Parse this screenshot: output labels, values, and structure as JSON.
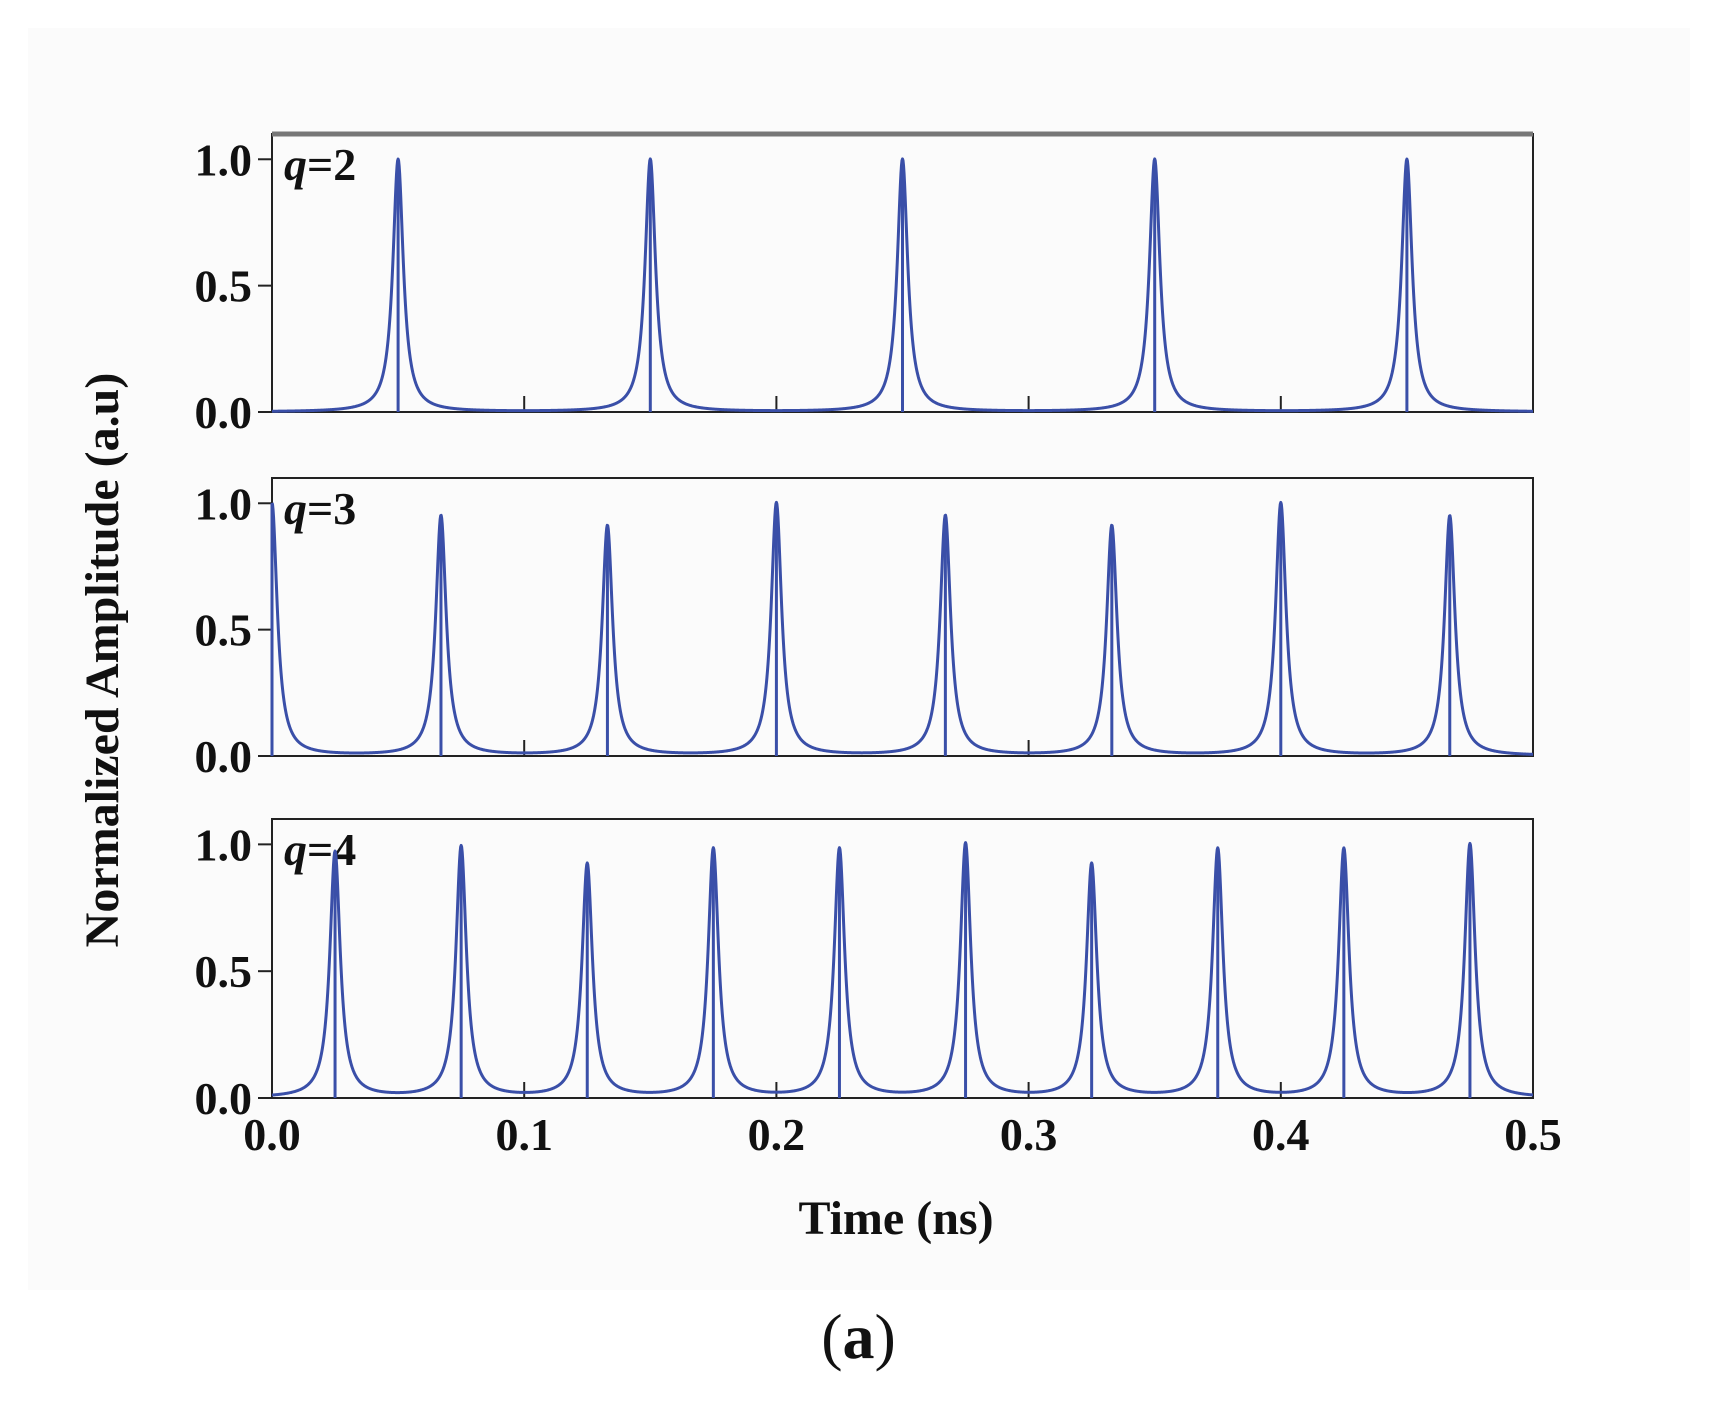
{
  "chart_data": {
    "type": "line",
    "xlabel": "Time (ns)",
    "ylabel": "Normalized Amplitude  (a.u)",
    "xlim": [
      0,
      0.5
    ],
    "ylim": [
      0,
      1.1
    ],
    "xticks": [
      "0.0",
      "0.1",
      "0.2",
      "0.3",
      "0.4",
      "0.5"
    ],
    "yticks": [
      "0.0",
      "0.5",
      "1.0"
    ],
    "line_color": "#3a4fa8",
    "pulse_halfwidth_ns": 0.0025,
    "panels": [
      {
        "label_var": "q",
        "label_rest": "=2",
        "peaks_x": [
          0.05,
          0.15,
          0.25,
          0.35,
          0.45
        ],
        "peaks_y": [
          1.0,
          1.0,
          1.0,
          1.0,
          1.0
        ]
      },
      {
        "label_var": "q",
        "label_rest": "=3",
        "peaks_x": [
          0.0,
          0.067,
          0.133,
          0.2,
          0.267,
          0.333,
          0.4,
          0.467
        ],
        "peaks_y": [
          1.0,
          0.95,
          0.91,
          1.0,
          0.95,
          0.91,
          1.0,
          0.95
        ]
      },
      {
        "label_var": "q",
        "label_rest": "=4",
        "peaks_x": [
          0.025,
          0.075,
          0.125,
          0.175,
          0.225,
          0.275,
          0.325,
          0.375,
          0.425,
          0.475
        ],
        "peaks_y": [
          0.97,
          0.99,
          0.92,
          0.98,
          0.98,
          1.0,
          0.92,
          0.98,
          0.98,
          1.0
        ]
      }
    ]
  },
  "caption": {
    "open": "(",
    "letter": "a",
    "close": ")"
  }
}
